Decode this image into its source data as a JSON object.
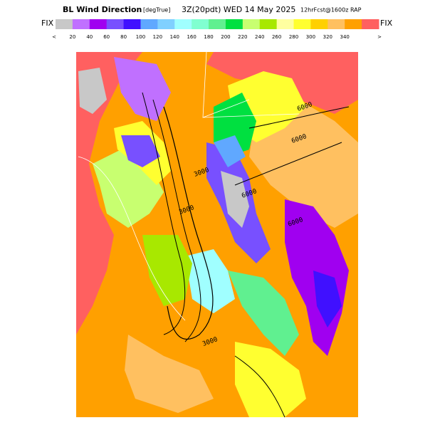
{
  "header": {
    "title": "BL Wind Direction",
    "units": "[degTrue]",
    "time": "3Z(20pdt) WED 14 May 2025",
    "forecast": "12hrFcst@1600z RAP"
  },
  "colorbar": {
    "left_label": "FIX",
    "right_label": "FIX",
    "under": "<",
    "over": ">",
    "ticks": [
      20,
      40,
      60,
      80,
      100,
      120,
      140,
      160,
      180,
      200,
      220,
      240,
      260,
      280,
      300,
      320,
      340
    ],
    "colors": [
      "#c8c8c8",
      "#c070ff",
      "#a000f0",
      "#7850ff",
      "#4010ff",
      "#60a8ff",
      "#80d0ff",
      "#a0ffff",
      "#80ffd0",
      "#60f090",
      "#00e040",
      "#c8ff70",
      "#a8e800",
      "#ffffa0",
      "#ffff30",
      "#ffd000",
      "#ffc060",
      "#ffa000",
      "#ff6060"
    ]
  },
  "contour_labels": [
    "6000",
    "6000",
    "6000",
    "3000",
    "3000",
    "6000",
    "3000"
  ]
}
